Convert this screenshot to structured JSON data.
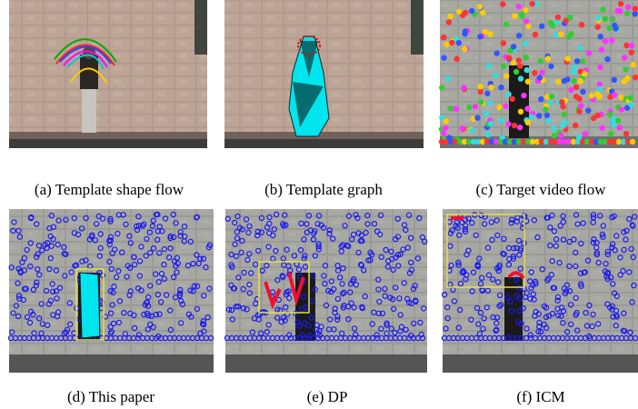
{
  "figure": {
    "panels": [
      {
        "caption": "(a) Template shape flow"
      },
      {
        "caption": "(b) Template graph"
      },
      {
        "caption": "(c) Target video flow"
      },
      {
        "caption": "(d) This paper"
      },
      {
        "caption": "(e) DP"
      },
      {
        "caption": "(f) ICM"
      }
    ]
  }
}
